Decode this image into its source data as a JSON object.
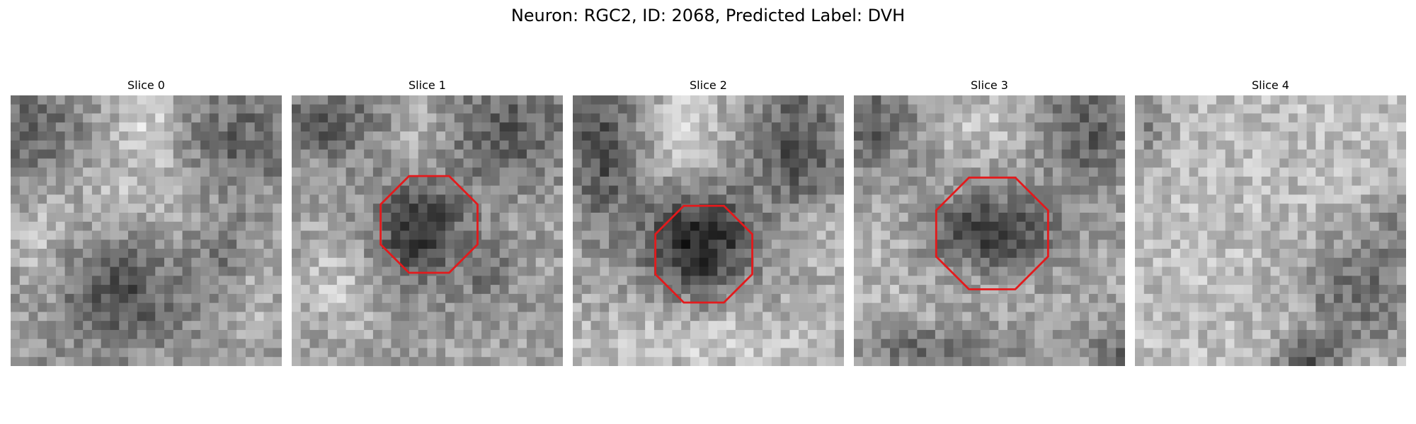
{
  "figure": {
    "title": "Neuron: RGC2, ID: 2068, Predicted Label: DVH"
  },
  "panels": [
    {
      "title": "Slice 0",
      "has_roi": false,
      "seed": 11
    },
    {
      "title": "Slice 1",
      "has_roi": true,
      "seed": 23
    },
    {
      "title": "Slice 2",
      "has_roi": true,
      "seed": 37
    },
    {
      "title": "Slice 3",
      "has_roi": true,
      "seed": 41
    },
    {
      "title": "Slice 4",
      "has_roi": false,
      "seed": 53
    }
  ],
  "colors": {
    "roi_outline": "#e31a1c",
    "background": "#ffffff"
  }
}
